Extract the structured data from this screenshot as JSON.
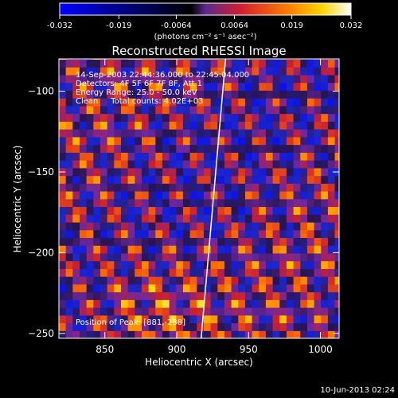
{
  "chart_data": {
    "type": "heatmap",
    "title": "Reconstructed RHESSI Image",
    "xlabel": "Heliocentric X (arcsec)",
    "ylabel": "Heliocentric Y (arcsec)",
    "xlim": [
      818,
      1013
    ],
    "ylim": [
      -253,
      -80
    ],
    "x_ticks": [
      850,
      900,
      950,
      1000
    ],
    "y_ticks": [
      -100,
      -150,
      -200,
      -250
    ],
    "colorbar": {
      "range": [
        -0.032,
        0.032
      ],
      "ticks": [
        "-0.032",
        "-0.019",
        "-0.0064",
        "0.0064",
        "0.019",
        "0.032"
      ],
      "unit_label": "(photons cm⁻² s⁻¹ asec⁻²)"
    },
    "annotations": [
      "14-Sep-2003 22:44:36.000 to 22:45:04.000",
      "Detectors: 4F 5F 6F 7F 8F, Att 1",
      "Energy Range: 25.0 - 50.0 keV",
      "Clean     Total counts: 4.02E+03"
    ],
    "position_label": "Position of Peak: [881,-238]",
    "peak": [
      881,
      -238
    ],
    "limb_line": [
      [
        934,
        -80
      ],
      [
        917,
        -253
      ]
    ],
    "grid": false,
    "footer_timestamp": "10-Jun-2013 02:24"
  }
}
